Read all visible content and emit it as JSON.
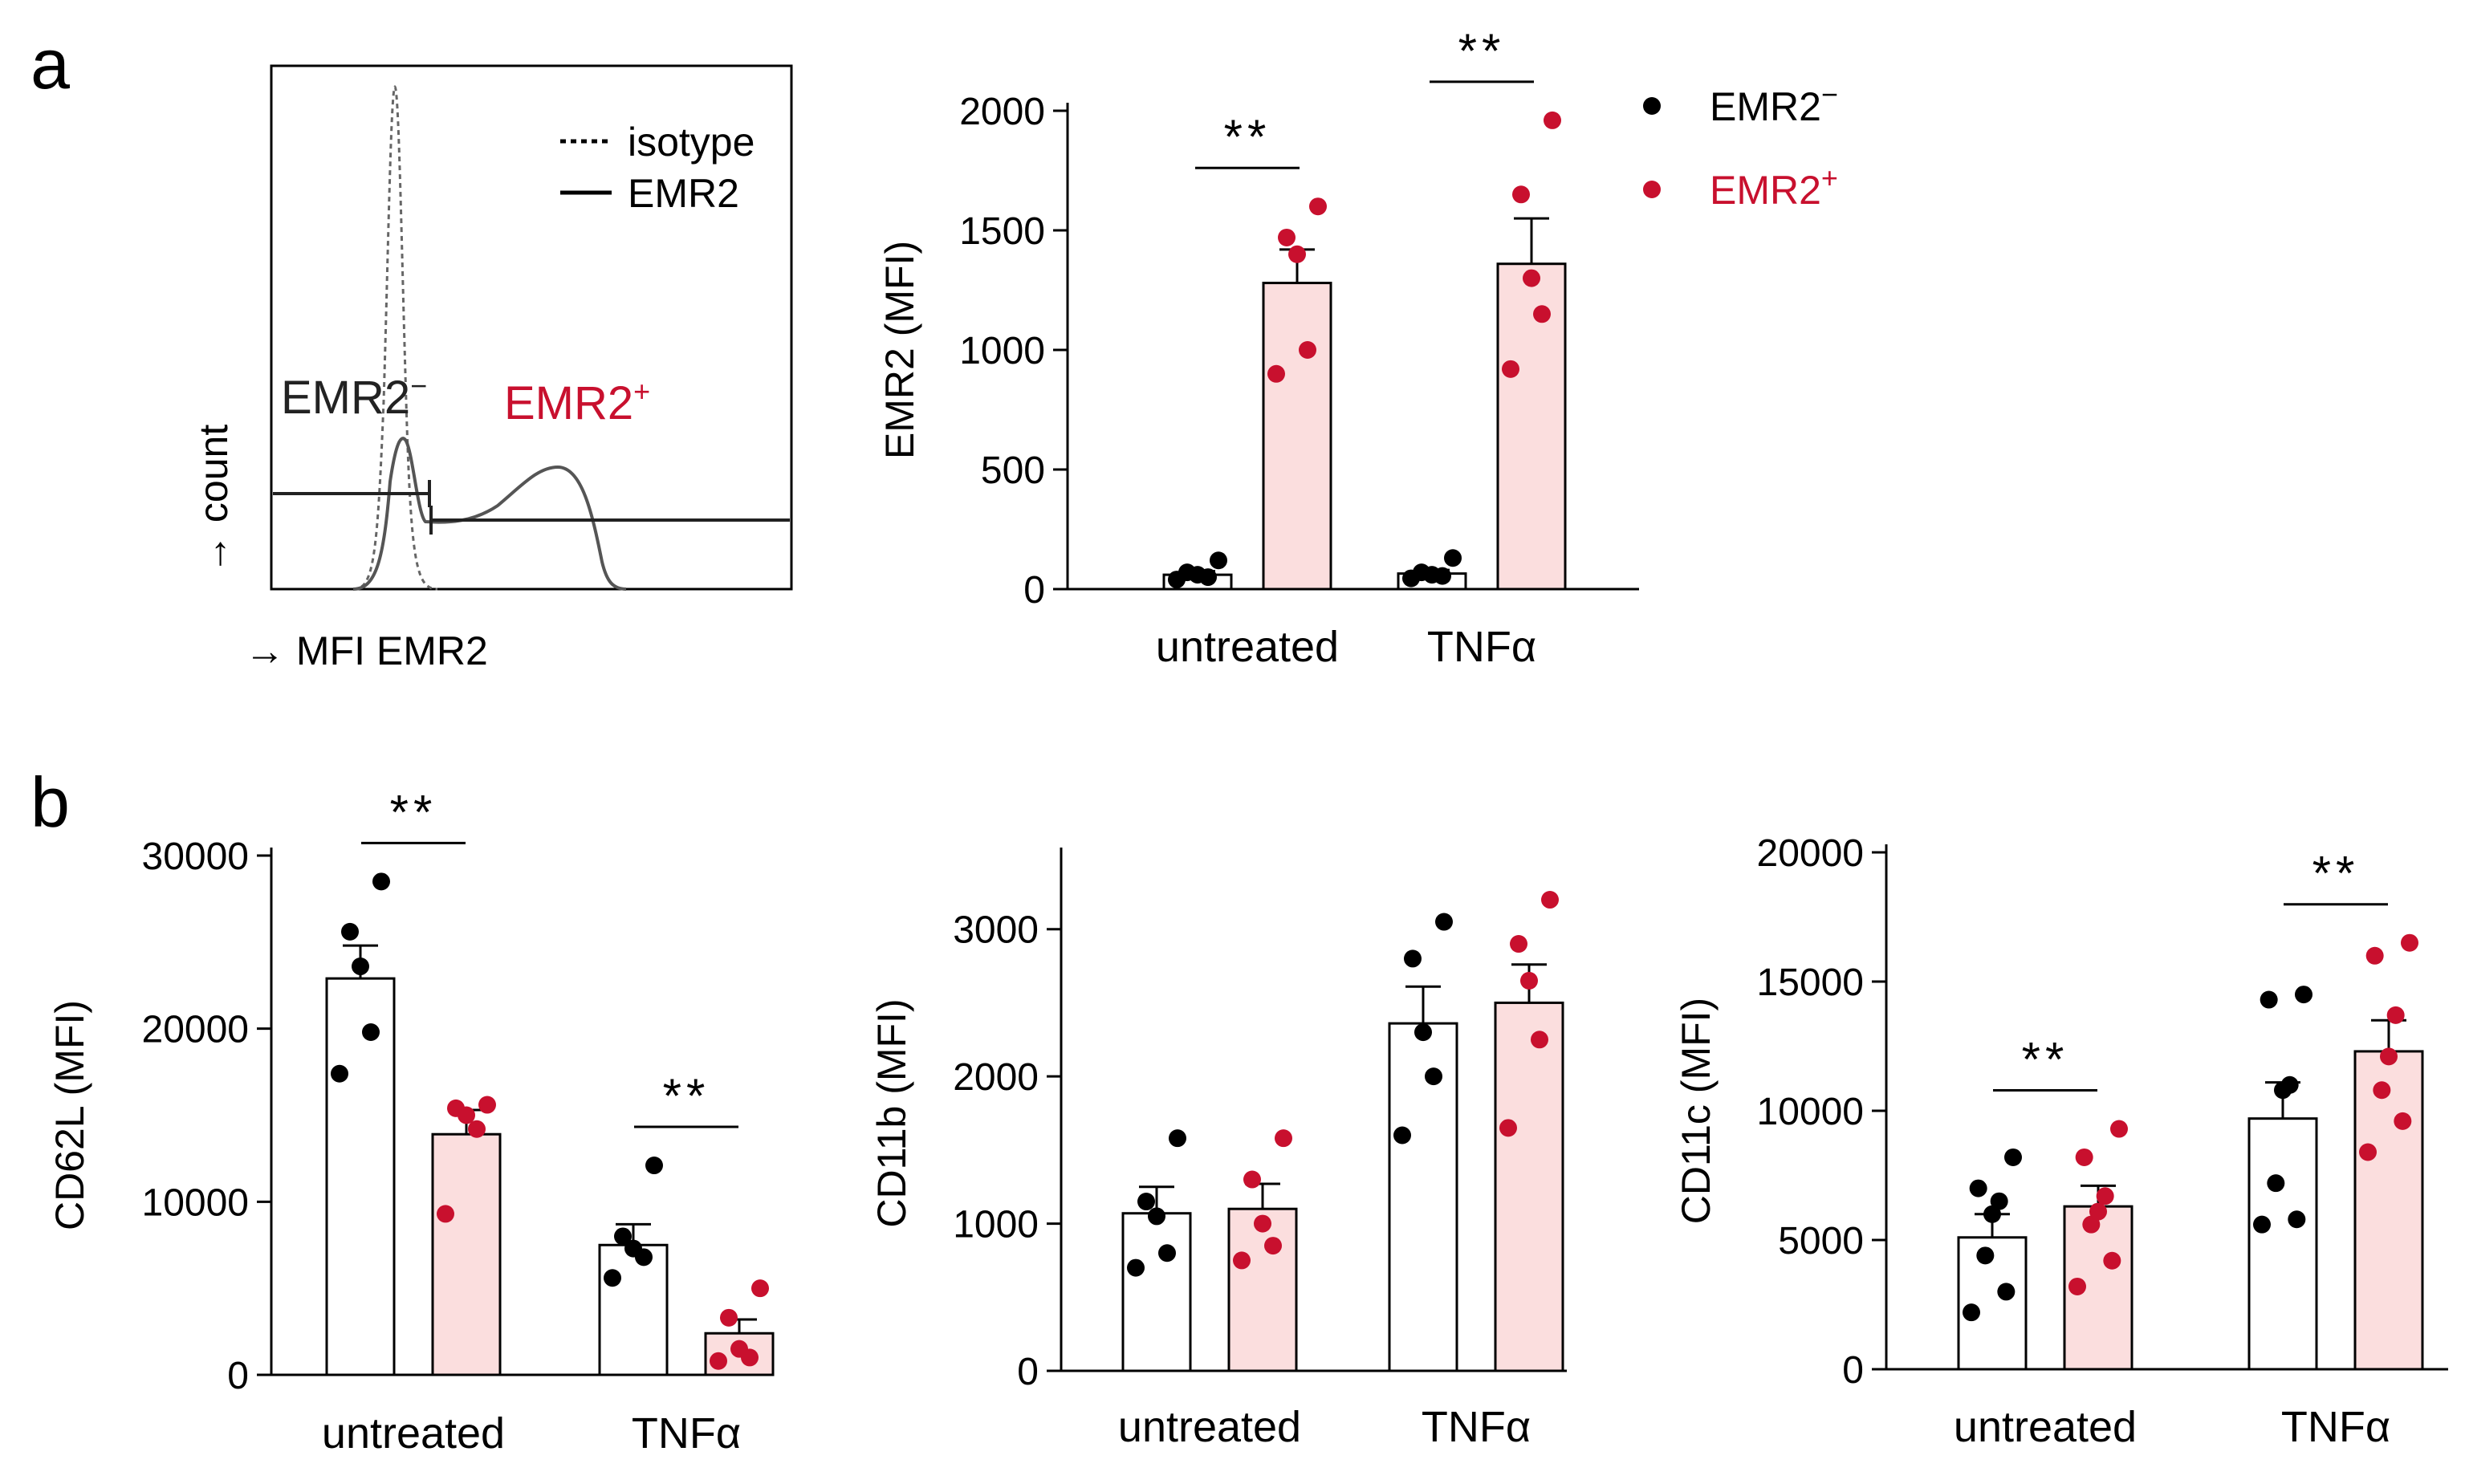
{
  "panels": {
    "a": "a",
    "b": "b"
  },
  "colors": {
    "neg_point": "#000000",
    "pos_point": "#c8102e",
    "neg_bar_fill": "#ffffff",
    "pos_bar_fill": "#fbdede",
    "axis": "#000000",
    "hist_line": "#555555"
  },
  "histogram": {
    "legend": {
      "isotype": "isotype",
      "emr2": "EMR2"
    },
    "neg_label": "EMR2",
    "neg_sup": "−",
    "pos_label": "EMR2",
    "pos_sup": "+",
    "xlabel": "→ MFI  EMR2",
    "ylabel": "→ count"
  },
  "legend": {
    "neg": {
      "text": "EMR2",
      "sup": "−"
    },
    "pos": {
      "text": "EMR2",
      "sup": "+"
    }
  },
  "chart_data": [
    {
      "id": "emr2",
      "type": "bar",
      "ylabel": "EMR2 (MFI)",
      "categories": [
        "untreated",
        "TNFα"
      ],
      "ylim": [
        0,
        2000
      ],
      "yticks": [
        0,
        500,
        1000,
        1500,
        2000
      ],
      "series": [
        {
          "name": "EMR2−",
          "means": [
            60,
            65
          ],
          "sem": [
            15,
            15
          ],
          "points": [
            [
              40,
              50,
              60,
              70,
              120
            ],
            [
              45,
              55,
              60,
              70,
              130
            ]
          ]
        },
        {
          "name": "EMR2+",
          "means": [
            1280,
            1360
          ],
          "sem": [
            140,
            190
          ],
          "points": [
            [
              900,
              1000,
              1400,
              1470,
              1600
            ],
            [
              920,
              1150,
              1300,
              1650,
              1960
            ]
          ]
        }
      ],
      "significance": [
        "**",
        "**"
      ]
    },
    {
      "id": "cd62l",
      "type": "bar",
      "ylabel": "CD62L (MFI)",
      "categories": [
        "untreated",
        "TNFα"
      ],
      "ylim": [
        0,
        30000
      ],
      "yticks": [
        0,
        10000,
        20000,
        30000
      ],
      "series": [
        {
          "name": "EMR2−",
          "means": [
            22900,
            7500
          ],
          "sem": [
            1900,
            1200
          ],
          "points": [
            [
              17400,
              19800,
              23600,
              25600,
              28500
            ],
            [
              5600,
              6800,
              7300,
              8000,
              12100
            ]
          ]
        },
        {
          "name": "EMR2+",
          "means": [
            13900,
            2400
          ],
          "sem": [
            1400,
            800
          ],
          "points": [
            [
              9300,
              14200,
              15000,
              15400,
              15600
            ],
            [
              800,
              1000,
              1500,
              3300,
              5000
            ]
          ]
        }
      ],
      "significance": [
        "**",
        "**"
      ]
    },
    {
      "id": "cd11b",
      "type": "bar",
      "ylabel": "CD11b (MFI)",
      "categories": [
        "untreated",
        "TNFα"
      ],
      "ylim": [
        0,
        3500
      ],
      "yticks": [
        0,
        1000,
        2000,
        3000
      ],
      "series": [
        {
          "name": "EMR2−",
          "means": [
            1070,
            2360
          ],
          "sem": [
            180,
            250
          ],
          "points": [
            [
              700,
              800,
              1050,
              1150,
              1580
            ],
            [
              1600,
              2000,
              2300,
              2800,
              3050
            ]
          ]
        },
        {
          "name": "EMR2+",
          "means": [
            1100,
            2500
          ],
          "sem": [
            170,
            260
          ],
          "points": [
            [
              750,
              850,
              1000,
              1300,
              1580
            ],
            [
              1650,
              2250,
              2650,
              2900,
              3200
            ]
          ]
        }
      ],
      "significance": [
        "",
        ""
      ]
    },
    {
      "id": "cd11c",
      "type": "bar",
      "ylabel": "CD11c (MFI)",
      "categories": [
        "untreated",
        "TNFα"
      ],
      "ylim": [
        0,
        20000
      ],
      "yticks": [
        0,
        5000,
        10000,
        15000,
        20000
      ],
      "series": [
        {
          "name": "EMR2−",
          "means": [
            5100,
            9700
          ],
          "sem": [
            900,
            1400
          ],
          "points": [
            [
              2200,
              3000,
              4400,
              6000,
              6500,
              7000,
              8200
            ],
            [
              5600,
              5800,
              7200,
              10800,
              11000,
              14300,
              14500
            ]
          ]
        },
        {
          "name": "EMR2+",
          "means": [
            6300,
            12300
          ],
          "sem": [
            800,
            1200
          ],
          "points": [
            [
              3200,
              4200,
              5600,
              6100,
              6700,
              8200,
              9300
            ],
            [
              8400,
              9600,
              10800,
              12100,
              13700,
              16000,
              16500
            ]
          ]
        }
      ],
      "significance": [
        "**",
        "**"
      ]
    }
  ]
}
